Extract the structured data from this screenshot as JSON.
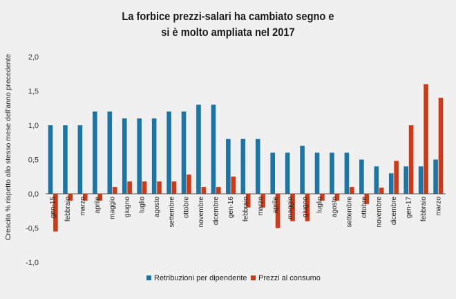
{
  "title_line1": "La forbice prezzi-salari ha cambiato segno e",
  "title_line2": "si è molto ampliata nel 2017",
  "colors": {
    "retribuzioni": "#1b75a6",
    "prezzi": "#cf3a15",
    "background": "#f0f0f0",
    "zero_axis": "#555555"
  },
  "chart_data": {
    "type": "bar",
    "ylabel": "Crescita % rispetto allo stesso mese dell'anno precedente",
    "xlabel": "",
    "ylim": [
      -1.0,
      2.0
    ],
    "yticks": [
      "-1,0",
      "-0,5",
      "0,0",
      "0,5",
      "1,0",
      "1,5",
      "2,0"
    ],
    "ytick_values": [
      -1.0,
      -0.5,
      0.0,
      0.5,
      1.0,
      1.5,
      2.0
    ],
    "grid": false,
    "legend_position": "bottom",
    "categories": [
      "gen-15",
      "febbraio",
      "marzo",
      "aprile",
      "maggio",
      "giugno",
      "luglio",
      "agosto",
      "settembre",
      "ottobre",
      "novembre",
      "dicembre",
      "gen-16",
      "febbraio",
      "marzo",
      "aprile",
      "maggio",
      "giugno",
      "luglio",
      "agosto",
      "settembre",
      "ottobre",
      "novembre",
      "dicembre",
      "gen-17",
      "febbraio",
      "marzo"
    ],
    "series": [
      {
        "name": "Retribuzioni per dipendente",
        "color": "#1b75a6",
        "values": [
          1.0,
          1.0,
          1.0,
          1.2,
          1.2,
          1.1,
          1.1,
          1.1,
          1.2,
          1.2,
          1.3,
          1.3,
          0.8,
          0.8,
          0.8,
          0.6,
          0.6,
          0.7,
          0.6,
          0.6,
          0.6,
          0.5,
          0.4,
          0.3,
          0.4,
          0.4,
          0.5
        ]
      },
      {
        "name": "Prezzi al consumo",
        "color": "#cf3a15",
        "values": [
          -0.55,
          -0.1,
          -0.1,
          -0.1,
          0.1,
          0.18,
          0.18,
          0.18,
          0.18,
          0.28,
          0.1,
          0.1,
          0.25,
          -0.2,
          -0.2,
          -0.5,
          -0.4,
          -0.4,
          -0.1,
          -0.1,
          0.1,
          -0.15,
          0.09,
          0.48,
          1.0,
          1.6,
          1.4
        ]
      }
    ]
  }
}
